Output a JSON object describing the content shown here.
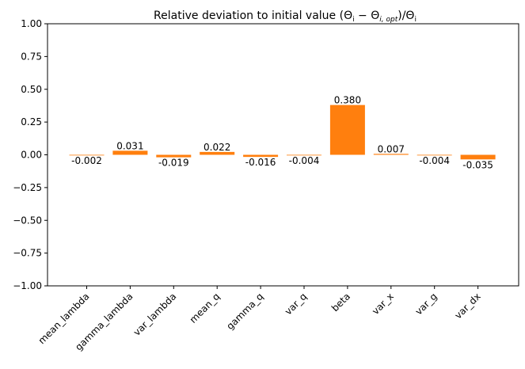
{
  "chart_data": {
    "type": "bar",
    "title_main": "Relative deviation to initial value (Θ",
    "title_sub_i": "i",
    "title_minus": " − Θ",
    "title_sub_iopt": "i, opt",
    "title_close": ")/Θ",
    "title_sub_i2": "i",
    "categories": [
      "mean_lambda",
      "gamma_lambda",
      "var_lambda",
      "mean_q",
      "gamma_q",
      "var_q",
      "beta",
      "var_x",
      "var_g",
      "var_dx"
    ],
    "values": [
      -0.002,
      0.031,
      -0.019,
      0.022,
      -0.016,
      -0.004,
      0.38,
      0.007,
      -0.004,
      -0.035
    ],
    "value_labels": [
      "-0.002",
      "0.031",
      "-0.019",
      "0.022",
      "-0.016",
      "-0.004",
      "0.380",
      "0.007",
      "-0.004",
      "-0.035"
    ],
    "ylim": [
      -1.0,
      1.0
    ],
    "yticks": [
      -1.0,
      -0.75,
      -0.5,
      -0.25,
      0.0,
      0.25,
      0.5,
      0.75,
      1.0
    ],
    "ytick_labels": [
      "−1.00",
      "−0.75",
      "−0.50",
      "−0.25",
      "0.00",
      "0.25",
      "0.50",
      "0.75",
      "1.00"
    ],
    "bar_color": "#ff7f0e",
    "grid": false
  }
}
